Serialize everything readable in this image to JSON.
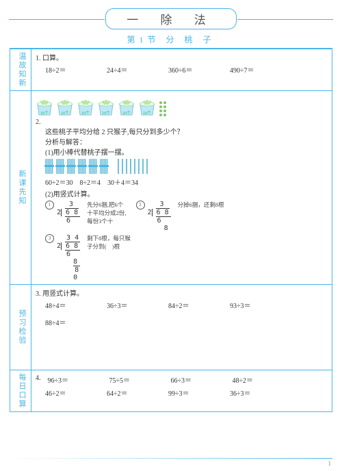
{
  "chapter_title": "一 除 法",
  "section_title": "第1节 分 桃 子",
  "sidebars": {
    "s1": "温故知新",
    "s2": "新课先知",
    "s3": "预习检验",
    "s4": "每日口算"
  },
  "q1": {
    "num": "1.",
    "label": "口算。",
    "items": [
      "18÷2＝",
      "24÷4＝",
      "360÷6＝",
      "490÷7＝"
    ]
  },
  "q2": {
    "num": "2.",
    "bucket_label": "10个",
    "problem": "这些桃子平均分给 2 只猴子,每只分到多少个？",
    "analysis_label": "分析与解答：",
    "step1_label": "(1)用小棒代替桃子摆一摆。",
    "eq1": "60÷2＝30",
    "eq2": "8÷2＝4",
    "eq3": "30＋4＝34",
    "step2_label": "(2)用竖式计算。",
    "w1_note1": "先分6捆,把6个",
    "w1_note2": "十平均分成2份,",
    "w1_note3": "每份3个十",
    "w2_note1": "分掉6捆，还剩8根",
    "w3_note1": "剩下8根，每只猴",
    "w3_note2": "子分到(　)根"
  },
  "q3": {
    "num": "3.",
    "label": "用竖式计算。",
    "items": [
      "48÷4＝",
      "36÷3＝",
      "84÷2＝",
      "93÷3＝",
      "88÷4＝"
    ]
  },
  "q4": {
    "num": "4.",
    "items_r1": [
      "96÷3＝",
      "75÷5＝",
      "66÷3＝",
      "48÷2＝"
    ],
    "items_r2": [
      "46÷2＝",
      "64÷2＝",
      "99÷3＝",
      "36÷3＝"
    ]
  },
  "page_num": "1"
}
